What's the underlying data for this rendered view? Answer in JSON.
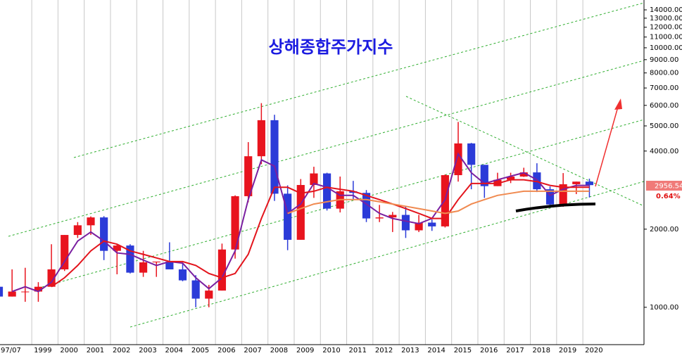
{
  "chart_data": {
    "type": "candlestick",
    "title": "상해종합주가지수",
    "log_scale": true,
    "grid": true,
    "xlim": [
      1997.79,
      2022.33
    ],
    "xticks": [
      {
        "value": 1997.5,
        "label": "97/07"
      },
      1999,
      2000,
      2001,
      2002,
      2003,
      2004,
      2005,
      2006,
      2007,
      2008,
      2009,
      2010,
      2011,
      2012,
      2013,
      2014,
      2015,
      2016,
      2017,
      2018,
      2019,
      2020
    ],
    "ylim": [
      718,
      15280
    ],
    "yticks": [
      {
        "value": 1000,
        "label": "1000.00"
      },
      {
        "value": 2000,
        "label": "2000.00"
      },
      {
        "value": 4000,
        "label": "4000.00"
      },
      {
        "value": 5000,
        "label": "5000.00"
      },
      {
        "value": 6000,
        "label": "6000.00"
      },
      {
        "value": 7000,
        "label": "7000.00"
      },
      {
        "value": 8000,
        "label": "8000.00"
      },
      {
        "value": 9000,
        "label": "9000.00"
      },
      {
        "value": 10000,
        "label": "10000.00"
      },
      {
        "value": 11000,
        "label": "11000.00"
      },
      {
        "value": 12000,
        "label": "12000.00"
      },
      {
        "value": 13000,
        "label": "13000.00"
      },
      {
        "value": 14000,
        "label": "14000.00"
      }
    ],
    "last_price": {
      "value": 2956.54,
      "label": "2956.54"
    },
    "change": {
      "value": 0.64,
      "label": "0.64%"
    },
    "up_color": "#e8141e",
    "down_color": "#2b3bd8",
    "x": [
      1997.5,
      1998,
      1998.5,
      1999,
      1999.5,
      2000,
      2000.5,
      2001,
      2001.5,
      2002,
      2002.5,
      2003,
      2003.5,
      2004,
      2004.5,
      2005,
      2005.5,
      2006,
      2006.5,
      2007,
      2007.5,
      2008,
      2008.5,
      2009,
      2009.5,
      2010,
      2010.5,
      2011,
      2011.5,
      2012,
      2012.5,
      2013,
      2013.5,
      2014,
      2014.5,
      2015,
      2015.5,
      2016,
      2016.5,
      2017,
      2017.5,
      2018,
      2018.5,
      2019,
      2019.5,
      2020
    ],
    "open": [
      1200,
      1100,
      1150,
      1150,
      1200,
      1400,
      1900,
      2070,
      2220,
      1650,
      1730,
      1360,
      1490,
      1500,
      1400,
      1270,
      1080,
      1160,
      1670,
      2680,
      3820,
      5260,
      2740,
      1820,
      2960,
      3280,
      2400,
      2800,
      2760,
      2200,
      2220,
      2270,
      1980,
      2120,
      2050,
      3230,
      4280,
      3540,
      2930,
      3100,
      3190,
      3310,
      2850,
      2490,
      2980,
      3050
    ],
    "high": [
      1250,
      1400,
      1420,
      1250,
      1750,
      1900,
      2130,
      2240,
      2245,
      1750,
      1750,
      1650,
      1500,
      1780,
      1480,
      1330,
      1220,
      1760,
      2700,
      4330,
      6120,
      5520,
      2950,
      3120,
      3480,
      3300,
      3190,
      3070,
      2830,
      2480,
      2330,
      2440,
      2270,
      2180,
      3250,
      5180,
      4300,
      3540,
      3300,
      3300,
      3450,
      3590,
      2920,
      3290,
      3050,
      3130
    ],
    "low": [
      1050,
      1100,
      1050,
      1050,
      1200,
      1380,
      1850,
      1900,
      1520,
      1340,
      1350,
      1310,
      1310,
      1400,
      1260,
      1000,
      1000,
      1160,
      1540,
      2540,
      3560,
      2570,
      1660,
      1820,
      2640,
      2360,
      2320,
      2600,
      2130,
      2130,
      1950,
      1850,
      1950,
      1970,
      2030,
      3050,
      2850,
      2640,
      2930,
      3010,
      3180,
      2780,
      2440,
      2440,
      2730,
      2650
    ],
    "close": [
      1100,
      1150,
      1150,
      1200,
      1400,
      1900,
      2070,
      2220,
      1650,
      1730,
      1360,
      1490,
      1500,
      1400,
      1270,
      1080,
      1160,
      1670,
      2680,
      3820,
      5260,
      2740,
      1820,
      2960,
      3280,
      2400,
      2800,
      2760,
      2200,
      2220,
      2270,
      1980,
      2120,
      2050,
      3230,
      4280,
      3540,
      2930,
      3100,
      3190,
      3310,
      2850,
      2490,
      2980,
      3050,
      2956.54
    ],
    "series": [
      {
        "color": "#7a1fa0",
        "values": [
          null,
          1150,
          1200,
          1150,
          1250,
          1500,
          1800,
          1950,
          1800,
          1620,
          1600,
          1520,
          1450,
          1500,
          1480,
          1300,
          1180,
          1300,
          1650,
          2600,
          3700,
          3500,
          2300,
          2500,
          3000,
          2900,
          2700,
          2700,
          2500,
          2300,
          2200,
          2150,
          2100,
          2200,
          2600,
          3900,
          3300,
          3000,
          3100,
          3200,
          3300,
          3100,
          2700,
          2850,
          2950,
          2950
        ]
      },
      {
        "color": "#e3141c",
        "values": [
          null,
          null,
          null,
          null,
          1200,
          1300,
          1450,
          1650,
          1800,
          1750,
          1650,
          1600,
          1550,
          1500,
          1500,
          1450,
          1350,
          1300,
          1350,
          1600,
          2200,
          2900,
          2900,
          2750,
          2800,
          2900,
          2850,
          2800,
          2700,
          2600,
          2500,
          2400,
          2300,
          2200,
          2200,
          2600,
          3000,
          3000,
          3000,
          3100,
          3100,
          3050,
          2950,
          2900,
          2900,
          2900
        ]
      },
      {
        "color": "#f08a50",
        "values": [
          null,
          null,
          null,
          null,
          null,
          null,
          null,
          null,
          null,
          null,
          null,
          null,
          null,
          null,
          null,
          null,
          null,
          null,
          null,
          null,
          null,
          null,
          2300,
          2400,
          2500,
          2550,
          2600,
          2600,
          2600,
          2550,
          2500,
          2450,
          2400,
          2350,
          2300,
          2350,
          2500,
          2600,
          2700,
          2750,
          2800,
          2800,
          2800,
          2800,
          2800,
          2800
        ]
      }
    ]
  }
}
